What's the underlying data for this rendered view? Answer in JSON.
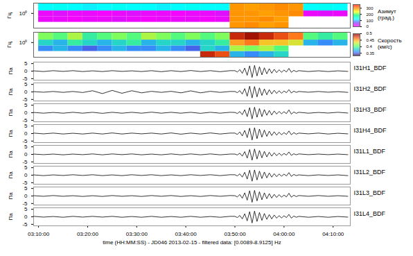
{
  "chart_data": [
    {
      "type": "heatmap",
      "y_label": "Гц",
      "log": "y",
      "tick_labels": "y",
      "xlim": [
        "03:09:00",
        "04:13:30"
      ],
      "ylim": [
        0.1,
        5
      ],
      "yticks": [
        {
          "value": 1,
          "label": "10⁰"
        }
      ],
      "x_edges": [
        "03:10:00",
        "03:13:00",
        "03:16:00",
        "03:19:00",
        "03:22:00",
        "03:25:00",
        "03:28:00",
        "03:31:00",
        "03:34:00",
        "03:37:00",
        "03:40:00",
        "03:43:00",
        "03:46:00",
        "03:49:00",
        "03:52:00",
        "03:55:00",
        "03:58:00",
        "04:01:00",
        "04:04:00",
        "04:07:00",
        "04:10:00",
        "04:13:00"
      ],
      "y_edges": [
        0.1,
        0.25,
        0.6,
        1.5,
        5
      ],
      "cells": [
        [
          null,
          null,
          null,
          null,
          null,
          null,
          null,
          null,
          null,
          null,
          null,
          null,
          null,
          290,
          295,
          285,
          290,
          null,
          null,
          null,
          null
        ],
        [
          10,
          10,
          5,
          10,
          10,
          15,
          10,
          5,
          10,
          10,
          10,
          5,
          10,
          290,
          290,
          295,
          285,
          null,
          null,
          null,
          null
        ],
        [
          10,
          15,
          10,
          10,
          5,
          10,
          15,
          10,
          10,
          5,
          10,
          10,
          15,
          290,
          290,
          285,
          290,
          295,
          10,
          15,
          10
        ],
        [
          120,
          125,
          120,
          115,
          120,
          125,
          120,
          120,
          115,
          120,
          125,
          120,
          120,
          290,
          285,
          290,
          295,
          290,
          120,
          125,
          120
        ]
      ],
      "colorbar": {
        "title": "Азимут (град.)",
        "range": [
          0,
          360
        ],
        "ticks": [
          0,
          100,
          200,
          300
        ]
      }
    },
    {
      "type": "heatmap",
      "y_label": "Гц",
      "log": "y",
      "tick_labels": "y",
      "xlim": [
        "03:09:00",
        "04:13:30"
      ],
      "ylim": [
        0.1,
        5
      ],
      "yticks": [
        {
          "value": 1,
          "label": "10⁰"
        }
      ],
      "x_edges": [
        "03:10:00",
        "03:13:00",
        "03:16:00",
        "03:19:00",
        "03:22:00",
        "03:25:00",
        "03:28:00",
        "03:31:00",
        "03:34:00",
        "03:37:00",
        "03:40:00",
        "03:43:00",
        "03:46:00",
        "03:49:00",
        "03:52:00",
        "03:55:00",
        "03:58:00",
        "04:01:00",
        "04:04:00",
        "04:07:00",
        "04:10:00",
        "04:13:00"
      ],
      "y_edges": [
        0.1,
        0.25,
        0.6,
        1.5,
        5
      ],
      "cells": [
        [
          null,
          null,
          null,
          null,
          null,
          null,
          null,
          null,
          null,
          null,
          null,
          0.48,
          0.47,
          0.37,
          0.36,
          0.37,
          0.38,
          null,
          null,
          null,
          null
        ],
        [
          0.36,
          0.37,
          0.36,
          0.35,
          0.36,
          0.37,
          0.36,
          0.36,
          0.37,
          0.36,
          0.35,
          0.38,
          0.37,
          0.42,
          0.41,
          0.42,
          0.4,
          null,
          null,
          null,
          null
        ],
        [
          0.38,
          0.37,
          0.39,
          0.38,
          0.37,
          0.38,
          0.39,
          0.37,
          0.38,
          0.38,
          0.37,
          0.38,
          0.39,
          0.45,
          0.46,
          0.44,
          0.44,
          0.43,
          0.37,
          0.36,
          0.37
        ],
        [
          0.41,
          0.4,
          0.42,
          0.39,
          0.4,
          0.41,
          0.4,
          0.42,
          0.41,
          0.4,
          0.41,
          0.4,
          0.41,
          0.48,
          0.49,
          0.48,
          0.47,
          0.46,
          0.4,
          0.39,
          0.4
        ]
      ],
      "colorbar": {
        "title": "Скорость (км/с)",
        "range": [
          0.33,
          0.5
        ],
        "ticks": [
          0.35,
          0.4,
          0.45,
          0.5
        ]
      }
    },
    {
      "type": "line",
      "y_label": "Па",
      "x_label": "time (HH:MM:SS) - JD046 2013-02-15 - filtered data: [0.0089-8.9125] Hz",
      "xlim": [
        "03:09:00",
        "04:13:30"
      ],
      "xticks": [
        "03:10:00",
        "03:20:00",
        "03:30:00",
        "03:40:00",
        "03:50:00",
        "04:00:00",
        "04:10:00"
      ],
      "ylim": [
        -6,
        6
      ],
      "yticks": [
        -5,
        0,
        5
      ],
      "x": [
        "03:09:00",
        "03:11:00",
        "03:13:00",
        "03:15:00",
        "03:17:00",
        "03:19:00",
        "03:21:00",
        "03:23:00",
        "03:25:00",
        "03:27:00",
        "03:29:00",
        "03:31:00",
        "03:33:00",
        "03:35:00",
        "03:37:00",
        "03:39:00",
        "03:41:00",
        "03:43:00",
        "03:45:00",
        "03:47:00",
        "03:49:00",
        "03:50:00",
        "03:50:30",
        "03:51:00",
        "03:51:30",
        "03:52:00",
        "03:52:30",
        "03:53:00",
        "03:53:30",
        "03:54:00",
        "03:54:30",
        "03:55:00",
        "03:55:30",
        "03:56:00",
        "03:56:30",
        "03:57:00",
        "03:57:30",
        "03:58:00",
        "03:58:30",
        "03:59:00",
        "03:59:30",
        "04:00:00",
        "04:00:30",
        "04:01:00",
        "04:01:30",
        "04:02:00",
        "04:02:30",
        "04:03:00",
        "04:05:00",
        "04:07:00",
        "04:09:00",
        "04:11:00",
        "04:13:00"
      ],
      "series": [
        {
          "name": "I31H1_BDF",
          "color": "#000000",
          "values": [
            0.2,
            -0.3,
            0.3,
            -0.2,
            0.3,
            -0.3,
            0.2,
            -0.3,
            0.3,
            -0.2,
            0.2,
            -0.3,
            0.3,
            -0.4,
            0.3,
            -0.3,
            0.4,
            -0.3,
            0.3,
            -0.4,
            0.3,
            0.3,
            -0.6,
            1.0,
            -1.5,
            2.0,
            -2.8,
            3.5,
            -4.2,
            3.8,
            -3.2,
            2.9,
            -2.5,
            2.2,
            -1.8,
            1.6,
            -1.4,
            1.2,
            -1.0,
            0.9,
            -0.8,
            0.7,
            -0.6,
            1.8,
            -0.8,
            0.5,
            -0.4,
            0.3,
            -0.3,
            0.2,
            -0.3,
            0.2,
            -0.2
          ]
        },
        {
          "name": "I31H2_BDF",
          "color": "#000000",
          "values": [
            0.2,
            -0.2,
            0.3,
            -0.3,
            0.3,
            -0.4,
            0.8,
            -1.1,
            1.0,
            -0.9,
            0.8,
            -0.6,
            0.4,
            -0.3,
            0.4,
            -0.6,
            0.7,
            -0.6,
            0.4,
            -0.3,
            0.3,
            0.3,
            -0.5,
            0.9,
            -1.4,
            2.2,
            -2.9,
            3.8,
            -4.0,
            3.6,
            -3.3,
            2.7,
            -2.4,
            2.0,
            -1.9,
            1.5,
            -1.3,
            1.1,
            -1.0,
            0.8,
            -0.9,
            0.6,
            -0.5,
            1.5,
            -0.7,
            0.5,
            -0.3,
            0.3,
            -0.2,
            0.3,
            -0.2,
            0.2,
            -0.3
          ]
        },
        {
          "name": "I31H3_BDF",
          "color": "#000000",
          "values": [
            0.2,
            -0.3,
            0.2,
            -0.3,
            0.3,
            -0.3,
            0.3,
            -0.4,
            0.3,
            -0.3,
            0.3,
            -0.3,
            0.4,
            -0.3,
            0.3,
            -0.3,
            0.3,
            -0.4,
            0.3,
            -0.3,
            0.3,
            0.2,
            -0.5,
            0.8,
            -1.3,
            2.0,
            -2.6,
            3.4,
            -4.1,
            3.7,
            -3.0,
            2.8,
            -2.6,
            2.1,
            -1.7,
            1.5,
            -1.5,
            1.2,
            -0.9,
            0.9,
            -0.7,
            0.7,
            -0.6,
            1.9,
            -0.9,
            0.5,
            -0.4,
            0.3,
            -0.3,
            0.2,
            -0.2,
            0.3,
            -0.2
          ]
        },
        {
          "name": "I31H4_BDF",
          "color": "#000000",
          "values": [
            0.3,
            -0.2,
            0.3,
            -0.3,
            0.2,
            -0.3,
            0.3,
            -0.3,
            0.4,
            -0.3,
            0.3,
            -0.2,
            0.3,
            -0.3,
            0.4,
            -0.4,
            0.3,
            -0.3,
            0.4,
            -0.3,
            0.3,
            0.3,
            -0.6,
            1.1,
            -1.6,
            2.1,
            -2.7,
            3.6,
            -4.3,
            3.9,
            -3.4,
            3.0,
            -2.4,
            2.3,
            -1.9,
            1.6,
            -1.3,
            1.2,
            -1.1,
            0.9,
            -0.8,
            0.6,
            -0.6,
            1.7,
            -0.8,
            0.6,
            -0.4,
            0.3,
            -0.2,
            0.3,
            -0.3,
            0.2,
            -0.2
          ]
        },
        {
          "name": "I31L1_BDF",
          "color": "#000000",
          "values": [
            0.2,
            -0.2,
            0.2,
            -0.3,
            0.2,
            -0.2,
            0.3,
            -0.3,
            0.3,
            -0.2,
            0.3,
            -0.3,
            0.2,
            -0.3,
            0.3,
            -0.3,
            0.3,
            -0.3,
            0.3,
            -0.3,
            0.2,
            0.2,
            -0.4,
            0.8,
            -1.2,
            1.8,
            -2.5,
            3.2,
            -3.9,
            3.6,
            -3.1,
            2.6,
            -2.3,
            2.0,
            -1.7,
            1.4,
            -1.2,
            1.1,
            -0.9,
            0.8,
            -0.7,
            0.6,
            -0.5,
            1.6,
            -0.7,
            0.4,
            -0.3,
            0.3,
            -0.2,
            0.2,
            -0.2,
            0.2,
            -0.2
          ]
        },
        {
          "name": "I31L2_BDF",
          "color": "#000000",
          "values": [
            0.2,
            -0.3,
            0.2,
            -0.2,
            0.3,
            -0.2,
            0.3,
            -0.3,
            0.2,
            -0.3,
            0.3,
            -0.2,
            0.3,
            -0.3,
            0.2,
            -0.3,
            0.3,
            -0.2,
            0.3,
            -0.3,
            0.3,
            0.3,
            -0.5,
            0.9,
            -1.3,
            1.9,
            -2.6,
            3.3,
            -4.0,
            3.5,
            -3.2,
            2.7,
            -2.2,
            2.1,
            -1.8,
            1.5,
            -1.3,
            1.0,
            -1.0,
            0.8,
            -0.7,
            0.7,
            -0.5,
            1.7,
            -0.8,
            0.5,
            -0.3,
            0.2,
            -0.3,
            0.2,
            -0.2,
            0.2,
            -0.3
          ]
        },
        {
          "name": "I31L3_BDF",
          "color": "#000000",
          "values": [
            0.2,
            -0.2,
            0.3,
            -0.2,
            0.2,
            -0.3,
            0.2,
            -0.3,
            0.3,
            -0.2,
            0.2,
            -0.3,
            0.3,
            -0.2,
            0.3,
            -0.3,
            0.2,
            -0.3,
            0.3,
            -0.2,
            0.3,
            0.2,
            -0.6,
            1.0,
            -1.5,
            2.1,
            -2.8,
            3.5,
            -4.2,
            3.7,
            -3.3,
            2.8,
            -2.5,
            2.1,
            -1.8,
            1.6,
            -1.4,
            1.1,
            -1.0,
            0.9,
            -0.8,
            0.6,
            -0.6,
            1.8,
            -0.8,
            0.5,
            -0.4,
            0.3,
            -0.2,
            0.3,
            -0.2,
            0.2,
            -0.2
          ]
        },
        {
          "name": "I31L4_BDF",
          "color": "#000000",
          "values": [
            0.3,
            -0.2,
            0.2,
            -0.3,
            0.3,
            -0.2,
            0.3,
            -0.2,
            0.3,
            -0.3,
            0.2,
            -0.3,
            0.3,
            -0.3,
            0.2,
            -0.3,
            0.3,
            -0.3,
            0.2,
            -0.3,
            0.3,
            0.3,
            -0.5,
            0.9,
            -1.4,
            2.0,
            -2.7,
            3.4,
            -4.1,
            3.8,
            -3.1,
            2.9,
            -2.4,
            2.2,
            -1.7,
            1.5,
            -1.4,
            1.2,
            -0.9,
            0.8,
            -0.8,
            0.7,
            -0.5,
            1.6,
            -0.9,
            0.5,
            -0.3,
            0.3,
            -0.3,
            0.2,
            -0.3,
            0.2,
            -0.2
          ]
        }
      ]
    }
  ]
}
